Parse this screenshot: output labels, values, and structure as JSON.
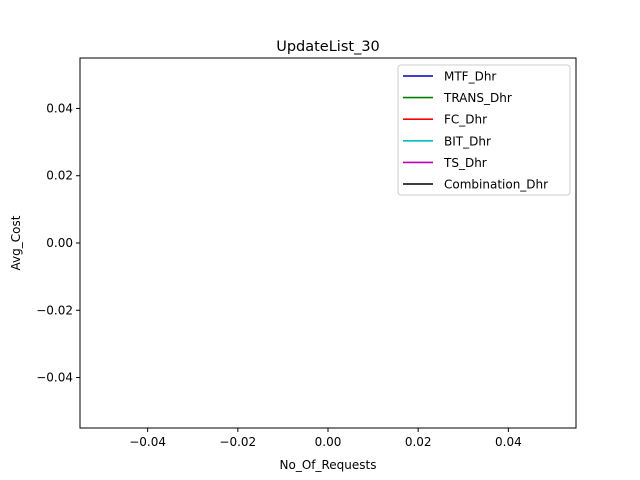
{
  "chart_data": {
    "type": "line",
    "title": "UpdateList_30",
    "xlabel": "No_Of_Requests",
    "ylabel": "Avg_Cost",
    "xlim": [
      -0.055,
      0.055
    ],
    "ylim": [
      -0.055,
      0.055
    ],
    "xticks": [
      -0.04,
      -0.02,
      0.0,
      0.02,
      0.04
    ],
    "xtick_labels": [
      "−0.04",
      "−0.02",
      "0.00",
      "0.02",
      "0.04"
    ],
    "yticks": [
      -0.04,
      -0.02,
      0.0,
      0.02,
      0.04
    ],
    "ytick_labels": [
      "−0.04",
      "−0.02",
      "0.00",
      "0.02",
      "0.04"
    ],
    "grid": false,
    "legend_position": "top-right",
    "series": [
      {
        "name": "MTF_Dhr",
        "color": "#0000bf",
        "x": [],
        "y": []
      },
      {
        "name": "TRANS_Dhr",
        "color": "#008000",
        "x": [],
        "y": []
      },
      {
        "name": "FC_Dhr",
        "color": "#ff0000",
        "x": [],
        "y": []
      },
      {
        "name": "BIT_Dhr",
        "color": "#00bfbf",
        "x": [],
        "y": []
      },
      {
        "name": "TS_Dhr",
        "color": "#bf00bf",
        "x": [],
        "y": []
      },
      {
        "name": "Combination_Dhr",
        "color": "#000000",
        "x": [],
        "y": []
      }
    ]
  }
}
